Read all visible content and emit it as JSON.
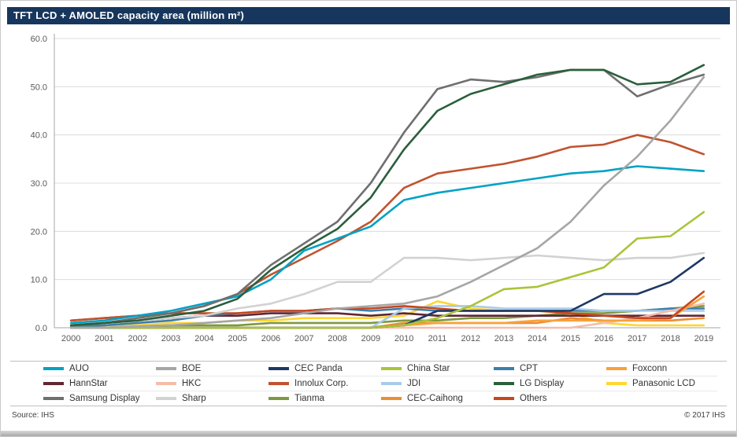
{
  "header": {
    "title": "TFT LCD + AMOLED capacity area (million m²)"
  },
  "footer": {
    "source": "Source: IHS",
    "copyright": "© 2017 IHS"
  },
  "chart_data": {
    "type": "line",
    "title": "TFT LCD + AMOLED capacity area (million m²)",
    "xlabel": "",
    "ylabel": "",
    "x": [
      2000,
      2001,
      2002,
      2003,
      2004,
      2005,
      2006,
      2007,
      2008,
      2009,
      2010,
      2011,
      2012,
      2013,
      2014,
      2015,
      2016,
      2017,
      2018,
      2019
    ],
    "ylim": [
      0,
      60
    ],
    "ytick_step": 10,
    "grid": "horizontal",
    "legend_position": "bottom",
    "series": [
      {
        "name": "AUO",
        "color": "#00A2C5",
        "values": [
          1.0,
          1.5,
          2.5,
          3.5,
          5.0,
          6.5,
          10.0,
          16.0,
          18.5,
          21.0,
          26.5,
          28.0,
          29.0,
          30.0,
          31.0,
          32.0,
          32.5,
          33.5,
          33.0,
          32.5
        ]
      },
      {
        "name": "BOE",
        "color": "#A6A6A6",
        "values": [
          0.0,
          0.0,
          0.3,
          0.5,
          1.0,
          1.5,
          2.0,
          3.0,
          4.0,
          4.5,
          5.0,
          6.5,
          9.5,
          13.0,
          16.5,
          22.0,
          29.5,
          35.5,
          43.0,
          52.0
        ]
      },
      {
        "name": "CEC Panda",
        "color": "#1F3864",
        "values": [
          0,
          0,
          0,
          0,
          0,
          0,
          0,
          0,
          0,
          0,
          0.5,
          3.5,
          3.5,
          3.5,
          3.5,
          3.5,
          7.0,
          7.0,
          9.5,
          14.5
        ]
      },
      {
        "name": "China Star",
        "color": "#A9C438",
        "values": [
          0,
          0,
          0,
          0,
          0,
          0,
          0,
          0,
          0,
          0,
          0.5,
          2.0,
          4.5,
          8.0,
          8.5,
          10.5,
          12.5,
          18.5,
          19.0,
          24.0
        ]
      },
      {
        "name": "CPT",
        "color": "#3D7EAA",
        "values": [
          0.3,
          0.5,
          1.0,
          1.5,
          2.5,
          3.0,
          3.5,
          3.5,
          4.0,
          3.5,
          4.0,
          3.5,
          3.5,
          3.5,
          3.5,
          3.5,
          3.5,
          3.5,
          4.0,
          4.0
        ]
      },
      {
        "name": "Foxconn",
        "color": "#F9A13A",
        "values": [
          0,
          0,
          0,
          0,
          0,
          0,
          0,
          0,
          0,
          0,
          0.5,
          1.0,
          1.0,
          1.0,
          1.5,
          1.5,
          1.5,
          1.5,
          2.0,
          6.5
        ]
      },
      {
        "name": "HannStar",
        "color": "#5F2735",
        "values": [
          0.5,
          1.0,
          1.5,
          2.0,
          2.5,
          2.5,
          3.0,
          3.0,
          3.0,
          2.5,
          3.0,
          2.5,
          2.5,
          2.5,
          2.5,
          2.5,
          2.5,
          2.5,
          2.5,
          2.5
        ]
      },
      {
        "name": "HKC",
        "color": "#F5BCA9",
        "values": [
          0,
          0,
          0,
          0,
          0,
          0,
          0,
          0,
          0,
          0,
          0,
          0,
          0,
          0,
          0,
          0,
          1.0,
          2.0,
          3.5,
          5.0
        ]
      },
      {
        "name": "Innolux Corp.",
        "color": "#C0532F",
        "values": [
          1.5,
          2.0,
          2.5,
          3.0,
          4.5,
          7.0,
          11.0,
          14.5,
          18.0,
          22.0,
          29.0,
          32.0,
          33.0,
          34.0,
          35.5,
          37.5,
          38.0,
          40.0,
          38.5,
          36.0
        ]
      },
      {
        "name": "JDI",
        "color": "#A8CBE8",
        "values": [
          0,
          0,
          0,
          0,
          0,
          0,
          0,
          0,
          0,
          0,
          4.0,
          4.5,
          4.5,
          4.0,
          4.0,
          4.0,
          3.5,
          3.5,
          3.5,
          3.5
        ]
      },
      {
        "name": "LG Display",
        "color": "#2B5F3C",
        "values": [
          0.5,
          1.0,
          1.5,
          2.5,
          3.5,
          6.0,
          12.0,
          16.5,
          20.5,
          27.0,
          37.0,
          45.0,
          48.5,
          50.5,
          52.5,
          53.5,
          53.5,
          50.5,
          51.0,
          54.5
        ]
      },
      {
        "name": "Panasonic LCD",
        "color": "#FFD633",
        "values": [
          0.3,
          0.5,
          0.5,
          1.0,
          1.0,
          1.5,
          1.5,
          2.0,
          2.0,
          2.0,
          2.5,
          5.5,
          4.0,
          3.5,
          3.5,
          3.0,
          1.0,
          0.5,
          0.5,
          0.5
        ]
      },
      {
        "name": "Samsung Display",
        "color": "#6F6F6F",
        "values": [
          0.5,
          1.0,
          2.0,
          3.0,
          4.5,
          7.0,
          13.0,
          17.5,
          22.0,
          30.0,
          40.5,
          49.5,
          51.5,
          51.0,
          52.0,
          53.5,
          53.5,
          48.0,
          50.5,
          52.5
        ]
      },
      {
        "name": "Sharp",
        "color": "#D2D2D2",
        "values": [
          1.0,
          1.0,
          1.5,
          2.0,
          2.5,
          4.0,
          5.0,
          7.0,
          9.5,
          9.5,
          14.5,
          14.5,
          14.0,
          14.5,
          15.0,
          14.5,
          14.0,
          14.5,
          14.5,
          15.5
        ]
      },
      {
        "name": "Tianma",
        "color": "#7C9A3D",
        "values": [
          0,
          0,
          0.3,
          0.5,
          0.5,
          0.5,
          1.0,
          1.0,
          1.0,
          1.0,
          1.5,
          1.5,
          2.0,
          2.0,
          2.5,
          3.0,
          3.0,
          3.5,
          4.0,
          4.5
        ]
      },
      {
        "name": "CEC-Caihong",
        "color": "#EC8C33",
        "values": [
          0,
          0,
          0,
          0,
          0,
          0,
          0,
          0,
          0,
          0,
          1.0,
          1.0,
          1.0,
          1.0,
          1.0,
          2.0,
          1.5,
          1.5,
          1.5,
          2.0
        ]
      },
      {
        "name": "Others",
        "color": "#C8461E",
        "values": [
          1.5,
          2.0,
          2.5,
          3.0,
          3.0,
          3.0,
          3.5,
          3.5,
          4.0,
          4.0,
          4.5,
          4.0,
          3.5,
          3.5,
          3.5,
          3.0,
          2.5,
          2.0,
          2.0,
          7.5
        ]
      }
    ],
    "draw_order": [
      "Panasonic LCD",
      "CEC-Caihong",
      "Tianma",
      "HannStar",
      "CPT",
      "JDI",
      "HKC",
      "Foxconn",
      "Others",
      "Sharp",
      "CEC Panda",
      "China Star",
      "Innolux Corp.",
      "AUO",
      "BOE",
      "Samsung Display",
      "LG Display"
    ]
  }
}
